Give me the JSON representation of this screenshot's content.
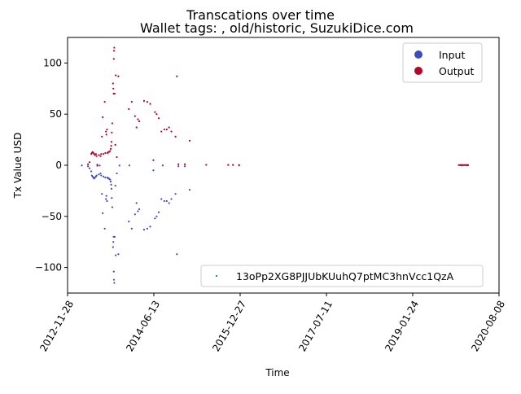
{
  "chart_data": {
    "type": "scatter",
    "title": "Transcations over time",
    "subtitle": "Wallet tags: , old/historic, SuzukiDice.com",
    "xlabel": "Time",
    "ylabel": "Tx Value USD",
    "x_ticks": [
      "2012-11-28",
      "2014-06-13",
      "2015-12-27",
      "2017-07-11",
      "2019-01-24",
      "2020-08-08"
    ],
    "xlim": [
      "2012-11-28",
      "2020-08-08"
    ],
    "y_ticks": [
      -100,
      -50,
      0,
      50,
      100
    ],
    "ylim": [
      -125,
      125
    ],
    "grid": false,
    "legend_position": "top-right",
    "address_legend": {
      "position": "lower-right",
      "label": "13oPp2XG8PJJUbKUuhQ7ptMC3hnVcc1QzA",
      "color": "#1b9e8a"
    },
    "series": [
      {
        "name": "Input",
        "color": "#3b4cc0",
        "points": [
          [
            "2013-04-10",
            -1
          ],
          [
            "2013-04-20",
            -3
          ],
          [
            "2013-05-01",
            -6
          ],
          [
            "2013-05-05",
            -10
          ],
          [
            "2013-05-10",
            -11
          ],
          [
            "2013-05-15",
            -12
          ],
          [
            "2013-05-20",
            -13
          ],
          [
            "2013-05-25",
            -12
          ],
          [
            "2013-06-01",
            -11
          ],
          [
            "2013-06-05",
            -10
          ],
          [
            "2013-06-10",
            -0.5
          ],
          [
            "2013-06-20",
            -9
          ],
          [
            "2013-07-01",
            -8
          ],
          [
            "2013-07-05",
            -10
          ],
          [
            "2013-07-10",
            -28
          ],
          [
            "2013-07-15",
            -47
          ],
          [
            "2013-07-20",
            -11
          ],
          [
            "2013-07-28",
            -62
          ],
          [
            "2013-08-01",
            -12
          ],
          [
            "2013-08-05",
            -33
          ],
          [
            "2013-08-08",
            -30
          ],
          [
            "2013-08-12",
            -35
          ],
          [
            "2013-08-15",
            -12
          ],
          [
            "2013-08-20",
            -13
          ],
          [
            "2013-08-25",
            -13
          ],
          [
            "2013-09-01",
            -14
          ],
          [
            "2013-09-05",
            -16
          ],
          [
            "2013-09-08",
            -19
          ],
          [
            "2013-09-10",
            -23
          ],
          [
            "2013-09-12",
            -32
          ],
          [
            "2013-09-15",
            -41
          ],
          [
            "2013-09-20",
            -80
          ],
          [
            "2013-09-22",
            -75
          ],
          [
            "2013-09-24",
            -70
          ],
          [
            "2013-09-25",
            -104
          ],
          [
            "2013-09-26",
            -112
          ],
          [
            "2013-09-28",
            -115
          ],
          [
            "2013-10-01",
            -70
          ],
          [
            "2013-10-05",
            -20
          ],
          [
            "2013-10-08",
            -88
          ],
          [
            "2013-10-15",
            -8
          ],
          [
            "2013-10-25",
            -87
          ],
          [
            "2014-01-01",
            -55
          ],
          [
            "2014-01-20",
            -62
          ],
          [
            "2014-02-10",
            -48
          ],
          [
            "2014-02-20",
            -37
          ],
          [
            "2014-03-01",
            -45
          ],
          [
            "2014-03-10",
            -43
          ],
          [
            "2014-04-10",
            -63
          ],
          [
            "2014-05-01",
            -62
          ],
          [
            "2014-05-20",
            -60
          ],
          [
            "2014-06-10",
            -5
          ],
          [
            "2014-06-20",
            -52
          ],
          [
            "2014-07-01",
            -50
          ],
          [
            "2014-07-15",
            -46
          ],
          [
            "2014-08-01",
            -33
          ],
          [
            "2014-08-20",
            -35
          ],
          [
            "2014-09-05",
            -35
          ],
          [
            "2014-09-20",
            -37
          ],
          [
            "2014-10-05",
            -33
          ],
          [
            "2014-11-01",
            -28
          ],
          [
            "2014-11-10",
            -87
          ],
          [
            "2014-11-20",
            -1
          ],
          [
            "2015-01-01",
            -1
          ],
          [
            "2015-02-01",
            -24
          ],
          [
            "2015-12-20",
            -0.2
          ],
          [
            "2013-03-01",
            -0.2
          ],
          [
            "2013-06-25",
            -0.3
          ],
          [
            "2013-11-01",
            -0.3
          ],
          [
            "2014-01-05",
            -0.2
          ],
          [
            "2014-08-10",
            -0.2
          ],
          [
            "2019-12-10",
            -0.2
          ],
          [
            "2020-01-15",
            -0.2
          ]
        ]
      },
      {
        "name": "Output",
        "color": "#b40426",
        "points": [
          [
            "2013-04-10",
            1
          ],
          [
            "2013-04-20",
            3
          ],
          [
            "2013-05-01",
            11
          ],
          [
            "2013-05-05",
            12
          ],
          [
            "2013-05-10",
            13
          ],
          [
            "2013-05-15",
            12
          ],
          [
            "2013-05-20",
            11
          ],
          [
            "2013-05-25",
            10
          ],
          [
            "2013-06-01",
            11
          ],
          [
            "2013-06-05",
            9
          ],
          [
            "2013-06-10",
            0.5
          ],
          [
            "2013-06-20",
            10
          ],
          [
            "2013-07-01",
            9
          ],
          [
            "2013-07-05",
            11
          ],
          [
            "2013-07-10",
            28
          ],
          [
            "2013-07-15",
            47
          ],
          [
            "2013-07-20",
            11
          ],
          [
            "2013-07-28",
            62
          ],
          [
            "2013-08-01",
            12
          ],
          [
            "2013-08-05",
            33
          ],
          [
            "2013-08-08",
            30
          ],
          [
            "2013-08-12",
            35
          ],
          [
            "2013-08-15",
            12
          ],
          [
            "2013-08-20",
            13
          ],
          [
            "2013-08-25",
            13
          ],
          [
            "2013-09-01",
            14
          ],
          [
            "2013-09-05",
            16
          ],
          [
            "2013-09-08",
            19
          ],
          [
            "2013-09-10",
            23
          ],
          [
            "2013-09-12",
            32
          ],
          [
            "2013-09-15",
            41
          ],
          [
            "2013-09-20",
            80
          ],
          [
            "2013-09-22",
            75
          ],
          [
            "2013-09-24",
            70
          ],
          [
            "2013-09-25",
            104
          ],
          [
            "2013-09-26",
            112
          ],
          [
            "2013-09-28",
            115
          ],
          [
            "2013-10-01",
            70
          ],
          [
            "2013-10-05",
            20
          ],
          [
            "2013-10-08",
            88
          ],
          [
            "2013-10-15",
            8
          ],
          [
            "2013-10-25",
            87
          ],
          [
            "2014-01-01",
            55
          ],
          [
            "2014-01-20",
            62
          ],
          [
            "2014-02-10",
            48
          ],
          [
            "2014-02-20",
            37
          ],
          [
            "2014-03-01",
            45
          ],
          [
            "2014-03-10",
            43
          ],
          [
            "2014-04-10",
            63
          ],
          [
            "2014-05-01",
            62
          ],
          [
            "2014-05-20",
            60
          ],
          [
            "2014-06-10",
            5
          ],
          [
            "2014-06-20",
            52
          ],
          [
            "2014-07-01",
            50
          ],
          [
            "2014-07-15",
            46
          ],
          [
            "2014-08-01",
            33
          ],
          [
            "2014-08-20",
            35
          ],
          [
            "2014-09-05",
            35
          ],
          [
            "2014-09-20",
            37
          ],
          [
            "2014-10-05",
            33
          ],
          [
            "2014-11-01",
            28
          ],
          [
            "2014-11-10",
            87
          ],
          [
            "2014-11-20",
            1
          ],
          [
            "2015-01-01",
            1
          ],
          [
            "2015-02-01",
            24
          ],
          [
            "2015-12-20",
            0.2
          ],
          [
            "2015-05-20",
            0.4
          ],
          [
            "2015-10-10",
            0.3
          ],
          [
            "2015-11-10",
            0.3
          ],
          [
            "2019-11-20",
            0.2
          ],
          [
            "2019-11-28",
            0.2
          ],
          [
            "2019-12-05",
            0.2
          ],
          [
            "2019-12-12",
            0.2
          ],
          [
            "2019-12-20",
            0.2
          ],
          [
            "2019-12-28",
            0.2
          ],
          [
            "2020-01-05",
            0.2
          ],
          [
            "2020-01-12",
            0.2
          ],
          [
            "2020-01-20",
            0.2
          ]
        ]
      }
    ]
  }
}
